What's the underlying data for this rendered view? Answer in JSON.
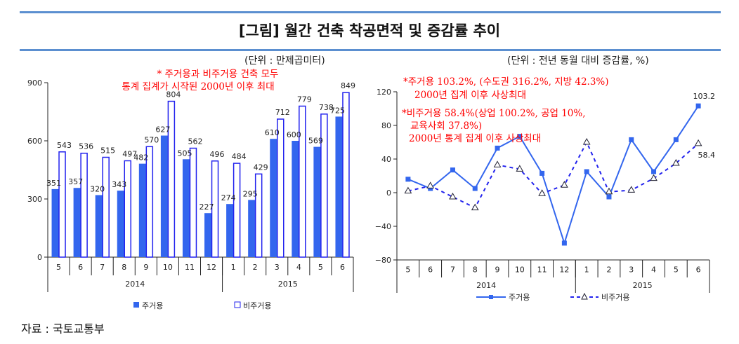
{
  "title": "[그림] 월간 건축 착공면적 및 증감률 추이",
  "source": "자료 : 국토교통부",
  "colors": {
    "residential": "#3366ee",
    "nonresidential": "#2222ee",
    "annotation": "#ff0000",
    "rule": "#5b8fd0"
  },
  "chart_data": [
    {
      "type": "bar",
      "unit_label": "(단위 : 만제곱미터)",
      "categories": [
        "5",
        "6",
        "7",
        "8",
        "9",
        "10",
        "11",
        "12",
        "1",
        "2",
        "3",
        "4",
        "5",
        "6"
      ],
      "year_groups": [
        {
          "label": "2014",
          "count": 8
        },
        {
          "label": "2015",
          "count": 6
        }
      ],
      "ylim": [
        0,
        900
      ],
      "yticks": [
        0,
        300,
        600,
        900
      ],
      "series": [
        {
          "name": "주거용",
          "values": [
            351,
            357,
            320,
            343,
            482,
            627,
            505,
            227,
            274,
            295,
            610,
            600,
            569,
            725
          ]
        },
        {
          "name": "비주거용",
          "values": [
            543,
            536,
            515,
            497,
            570,
            804,
            562,
            496,
            484,
            429,
            712,
            779,
            738,
            849
          ]
        }
      ],
      "annotation": [
        "* 주거용과 비주거용 건축 모두",
        "통계 집계가 시작된 2000년 이후 최대"
      ],
      "legend": "bottom"
    },
    {
      "type": "line",
      "unit_label": "(단위 : 전년 동월 대비 증감률, %)",
      "categories": [
        "5",
        "6",
        "7",
        "8",
        "9",
        "10",
        "11",
        "12",
        "1",
        "2",
        "3",
        "4",
        "5",
        "6"
      ],
      "year_groups": [
        {
          "label": "2014",
          "count": 8
        },
        {
          "label": "2015",
          "count": 6
        }
      ],
      "ylim": [
        -80,
        120
      ],
      "yticks": [
        -80,
        -40,
        0,
        40,
        80,
        120
      ],
      "series": [
        {
          "name": "주거용",
          "values": [
            16,
            5,
            27,
            5,
            53,
            67,
            23,
            -60,
            25,
            -5,
            63,
            25,
            63,
            103.2
          ],
          "last_label": "103.2"
        },
        {
          "name": "비주거용",
          "values": [
            2,
            8,
            -5,
            -18,
            33,
            28,
            -1,
            9,
            60,
            1,
            3,
            17,
            35,
            58.4
          ],
          "last_label": "58.4"
        }
      ],
      "annotation": [
        "*주거용 103.2%, (수도권 316.2%, 지방 42.3%)",
        "2000년 집계 이후 사상최대",
        "*비주거용 58.4%(상업 100.2%, 공업 10%,",
        "교육사회 37.8%)",
        "2000년 통계 집계 이후  사상최대"
      ],
      "legend": "bottom"
    }
  ]
}
